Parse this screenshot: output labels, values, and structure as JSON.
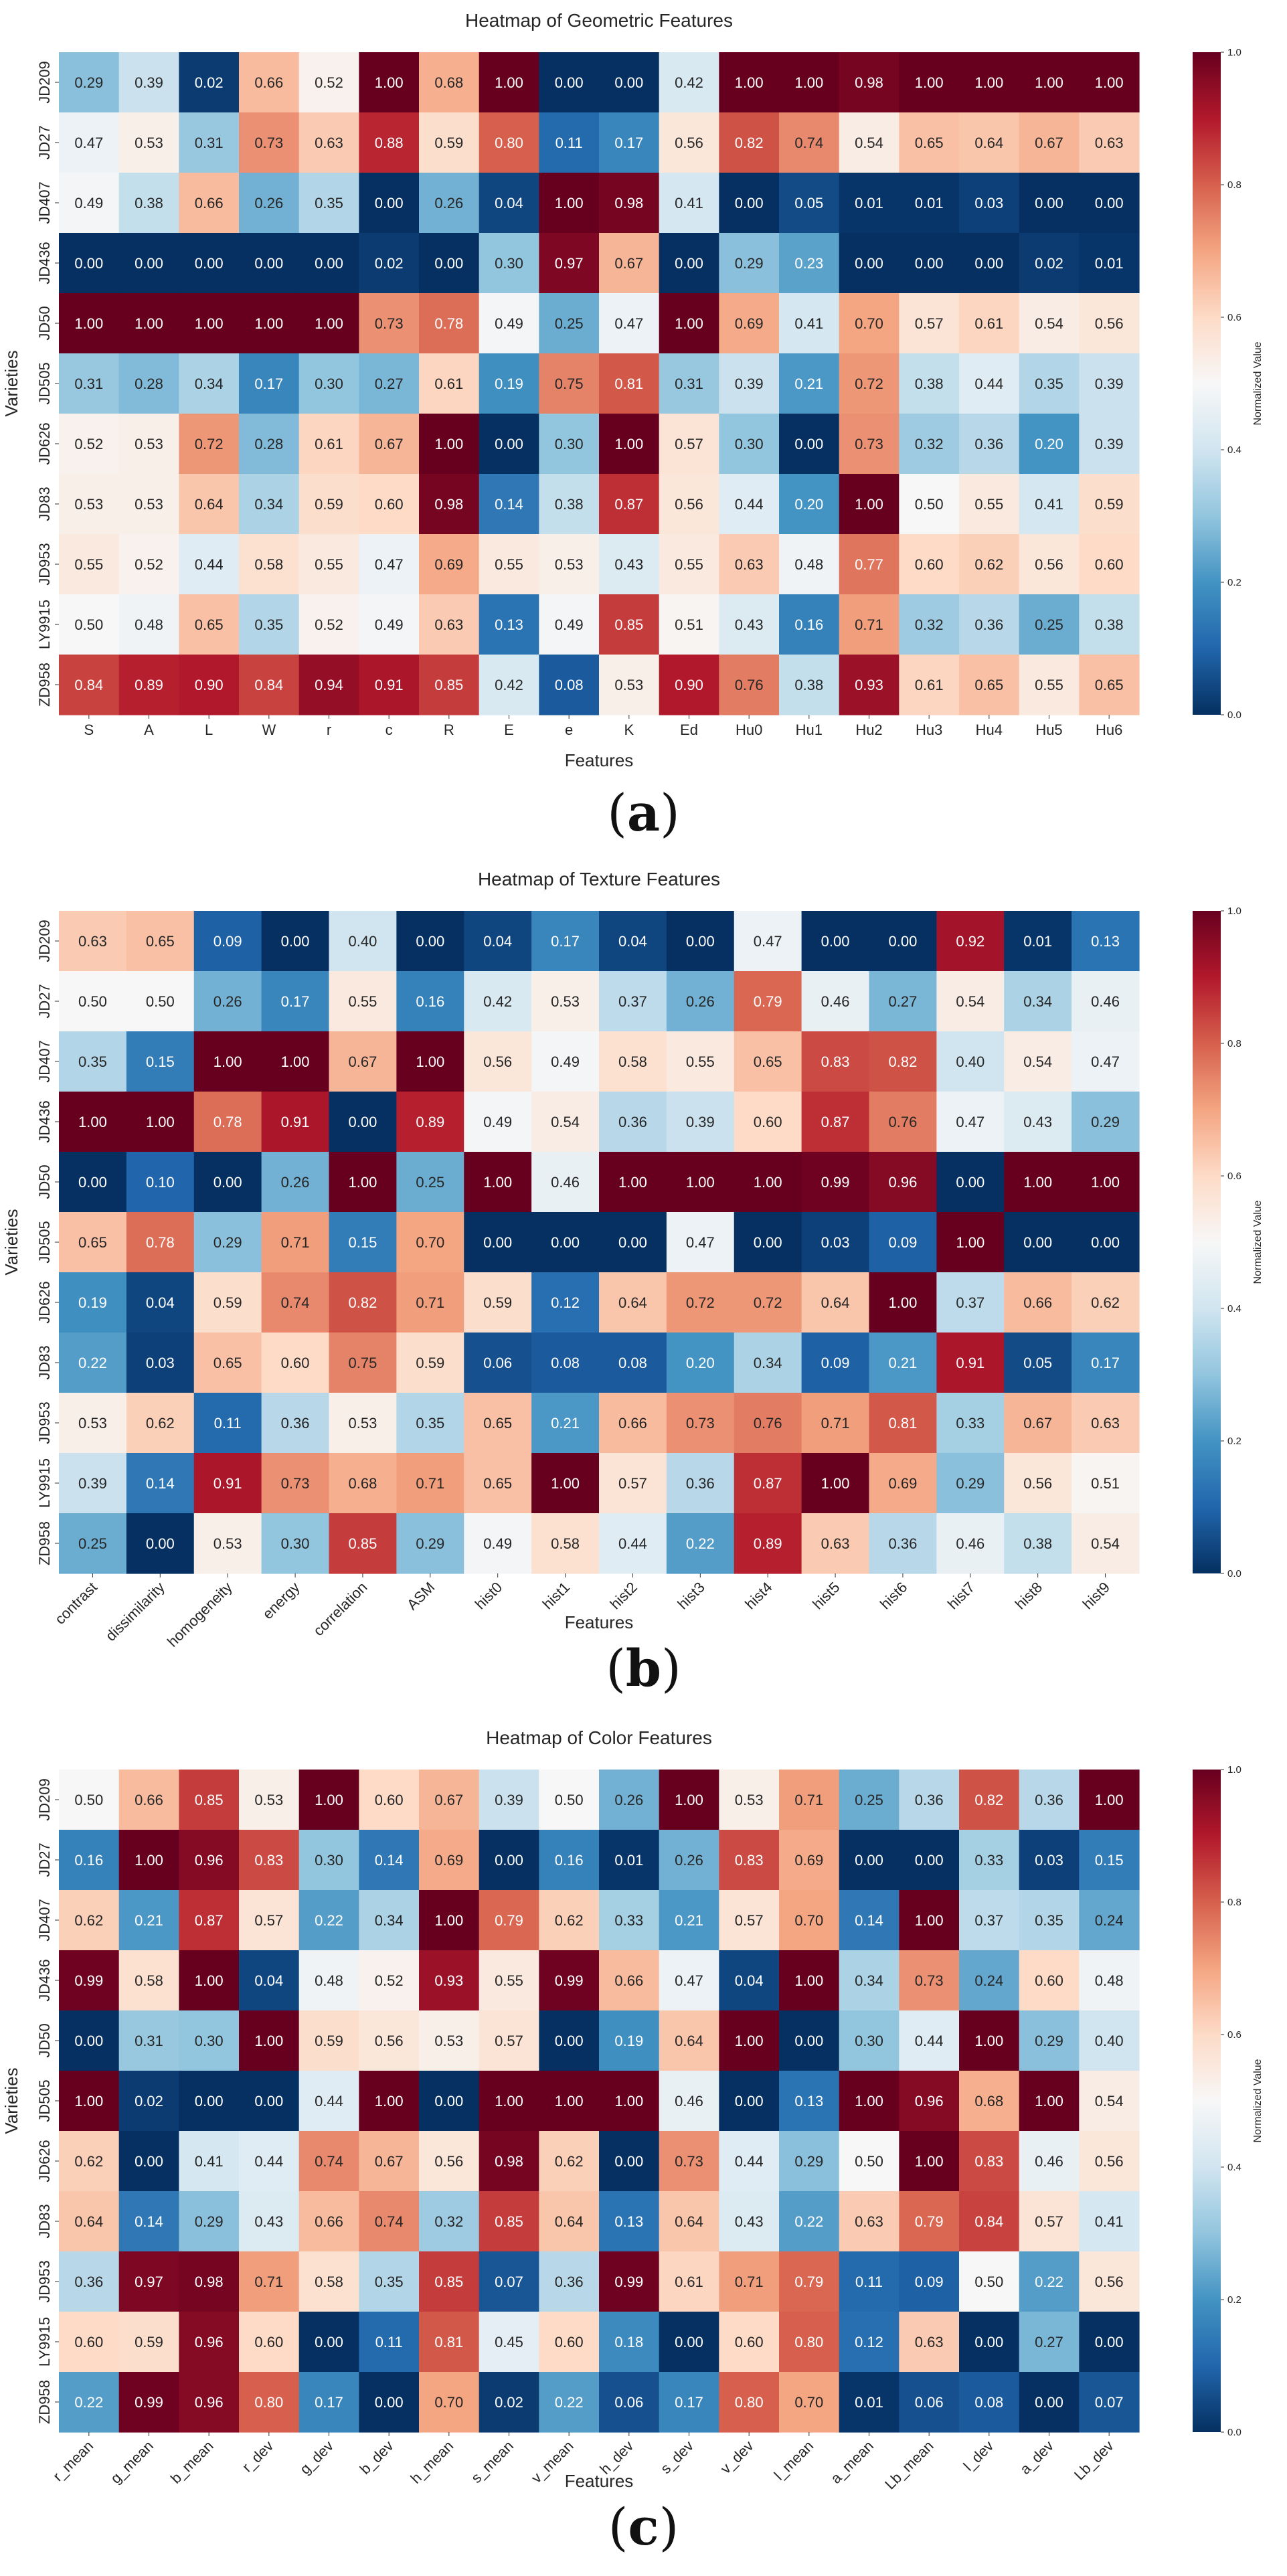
{
  "figure": {
    "panels": [
      {
        "letter_open": "(",
        "letter": "a",
        "letter_close": ")"
      },
      {
        "letter_open": "(",
        "letter": "b",
        "letter_close": ")"
      },
      {
        "letter_open": "(",
        "letter": "c",
        "letter_close": ")"
      }
    ]
  },
  "colors": {
    "cmap": [
      "#053061",
      "#2166ac",
      "#4393c3",
      "#92c5de",
      "#d1e5f0",
      "#f7f7f7",
      "#fddbc7",
      "#f4a582",
      "#d6604d",
      "#b2182b",
      "#67001f"
    ],
    "text_dark": "#262626",
    "text_light": "#ffffff"
  },
  "chart_data": [
    {
      "type": "heatmap",
      "title": "Heatmap of Geometric Features",
      "xlabel": "Features",
      "ylabel": "Varieties",
      "colorbar_label": "Normalized Value",
      "vmin": 0,
      "vmax": 1,
      "colorbar_ticks": [
        "0.0",
        "0.2",
        "0.4",
        "0.6",
        "0.8",
        "1.0"
      ],
      "rows": [
        "JD209",
        "JD27",
        "JD407",
        "JD436",
        "JD50",
        "JD505",
        "JD626",
        "JD83",
        "JD953",
        "LY9915",
        "ZD958"
      ],
      "columns": [
        "S",
        "A",
        "L",
        "W",
        "r",
        "c",
        "R",
        "E",
        "e",
        "K",
        "Ed",
        "Hu0",
        "Hu1",
        "Hu2",
        "Hu3",
        "Hu4",
        "Hu5",
        "Hu6"
      ],
      "values": [
        [
          0.29,
          0.39,
          0.02,
          0.66,
          0.52,
          1.0,
          0.68,
          1.0,
          0.0,
          0.0,
          0.42,
          1.0,
          1.0,
          0.98,
          1.0,
          1.0,
          1.0,
          1.0
        ],
        [
          0.47,
          0.53,
          0.31,
          0.73,
          0.63,
          0.88,
          0.59,
          0.8,
          0.11,
          0.17,
          0.56,
          0.82,
          0.74,
          0.54,
          0.65,
          0.64,
          0.67,
          0.63
        ],
        [
          0.49,
          0.38,
          0.66,
          0.26,
          0.35,
          0.0,
          0.26,
          0.04,
          1.0,
          0.98,
          0.41,
          0.0,
          0.05,
          0.01,
          0.01,
          0.03,
          0.0,
          0.0
        ],
        [
          0.0,
          0.0,
          0.0,
          0.0,
          0.0,
          0.02,
          0.0,
          0.3,
          0.97,
          0.67,
          0.0,
          0.29,
          0.23,
          0.0,
          0.0,
          0.0,
          0.02,
          0.01
        ],
        [
          1.0,
          1.0,
          1.0,
          1.0,
          1.0,
          0.73,
          0.78,
          0.49,
          0.25,
          0.47,
          1.0,
          0.69,
          0.41,
          0.7,
          0.57,
          0.61,
          0.54,
          0.56
        ],
        [
          0.31,
          0.28,
          0.34,
          0.17,
          0.3,
          0.27,
          0.61,
          0.19,
          0.75,
          0.81,
          0.31,
          0.39,
          0.21,
          0.72,
          0.38,
          0.44,
          0.35,
          0.39
        ],
        [
          0.52,
          0.53,
          0.72,
          0.28,
          0.61,
          0.67,
          1.0,
          0.0,
          0.3,
          1.0,
          0.57,
          0.3,
          0.0,
          0.73,
          0.32,
          0.36,
          0.2,
          0.39
        ],
        [
          0.53,
          0.53,
          0.64,
          0.34,
          0.59,
          0.6,
          0.98,
          0.14,
          0.38,
          0.87,
          0.56,
          0.44,
          0.2,
          1.0,
          0.5,
          0.55,
          0.41,
          0.59
        ],
        [
          0.55,
          0.52,
          0.44,
          0.58,
          0.55,
          0.47,
          0.69,
          0.55,
          0.53,
          0.43,
          0.55,
          0.63,
          0.48,
          0.77,
          0.6,
          0.62,
          0.56,
          0.6
        ],
        [
          0.5,
          0.48,
          0.65,
          0.35,
          0.52,
          0.49,
          0.63,
          0.13,
          0.49,
          0.85,
          0.51,
          0.43,
          0.16,
          0.71,
          0.32,
          0.36,
          0.25,
          0.38
        ],
        [
          0.84,
          0.89,
          0.9,
          0.84,
          0.94,
          0.91,
          0.85,
          0.42,
          0.08,
          0.53,
          0.9,
          0.76,
          0.38,
          0.93,
          0.61,
          0.65,
          0.55,
          0.65
        ]
      ],
      "xtick_rotation": 0
    },
    {
      "type": "heatmap",
      "title": "Heatmap of Texture Features",
      "xlabel": "Features",
      "ylabel": "Varieties",
      "colorbar_label": "Normalized Value",
      "vmin": 0,
      "vmax": 1,
      "colorbar_ticks": [
        "0.0",
        "0.2",
        "0.4",
        "0.6",
        "0.8",
        "1.0"
      ],
      "rows": [
        "JD209",
        "JD27",
        "JD407",
        "JD436",
        "JD50",
        "JD505",
        "JD626",
        "JD83",
        "JD953",
        "LY9915",
        "ZD958"
      ],
      "columns": [
        "contrast",
        "dissimilarity",
        "homogeneity",
        "energy",
        "correlation",
        "ASM",
        "hist0",
        "hist1",
        "hist2",
        "hist3",
        "hist4",
        "hist5",
        "hist6",
        "hist7",
        "hist8",
        "hist9"
      ],
      "values": [
        [
          0.63,
          0.65,
          0.09,
          0.0,
          0.4,
          0.0,
          0.04,
          0.17,
          0.04,
          0.0,
          0.47,
          0.0,
          0.0,
          0.92,
          0.01,
          0.13
        ],
        [
          0.5,
          0.5,
          0.26,
          0.17,
          0.55,
          0.16,
          0.42,
          0.53,
          0.37,
          0.26,
          0.79,
          0.46,
          0.27,
          0.54,
          0.34,
          0.46
        ],
        [
          0.35,
          0.15,
          1.0,
          1.0,
          0.67,
          1.0,
          0.56,
          0.49,
          0.58,
          0.55,
          0.65,
          0.83,
          0.82,
          0.4,
          0.54,
          0.47
        ],
        [
          1.0,
          1.0,
          0.78,
          0.91,
          0.0,
          0.89,
          0.49,
          0.54,
          0.36,
          0.39,
          0.6,
          0.87,
          0.76,
          0.47,
          0.43,
          0.29
        ],
        [
          0.0,
          0.1,
          0.0,
          0.26,
          1.0,
          0.25,
          1.0,
          0.46,
          1.0,
          1.0,
          1.0,
          0.99,
          0.96,
          0.0,
          1.0,
          1.0
        ],
        [
          0.65,
          0.78,
          0.29,
          0.71,
          0.15,
          0.7,
          0.0,
          0.0,
          0.0,
          0.47,
          0.0,
          0.03,
          0.09,
          1.0,
          0.0,
          0.0
        ],
        [
          0.19,
          0.04,
          0.59,
          0.74,
          0.82,
          0.71,
          0.59,
          0.12,
          0.64,
          0.72,
          0.72,
          0.64,
          1.0,
          0.37,
          0.66,
          0.62
        ],
        [
          0.22,
          0.03,
          0.65,
          0.6,
          0.75,
          0.59,
          0.06,
          0.08,
          0.08,
          0.2,
          0.34,
          0.09,
          0.21,
          0.91,
          0.05,
          0.17
        ],
        [
          0.53,
          0.62,
          0.11,
          0.36,
          0.53,
          0.35,
          0.65,
          0.21,
          0.66,
          0.73,
          0.76,
          0.71,
          0.81,
          0.33,
          0.67,
          0.63
        ],
        [
          0.39,
          0.14,
          0.91,
          0.73,
          0.68,
          0.71,
          0.65,
          1.0,
          0.57,
          0.36,
          0.87,
          1.0,
          0.69,
          0.29,
          0.56,
          0.51
        ],
        [
          0.25,
          0.0,
          0.53,
          0.3,
          0.85,
          0.29,
          0.49,
          0.58,
          0.44,
          0.22,
          0.89,
          0.63,
          0.36,
          0.46,
          0.38,
          0.54
        ]
      ],
      "xtick_rotation": 45
    },
    {
      "type": "heatmap",
      "title": "Heatmap of Color Features",
      "xlabel": "Features",
      "ylabel": "Varieties",
      "colorbar_label": "Normalized Value",
      "vmin": 0,
      "vmax": 1,
      "colorbar_ticks": [
        "0.0",
        "0.2",
        "0.4",
        "0.6",
        "0.8",
        "1.0"
      ],
      "rows": [
        "JD209",
        "JD27",
        "JD407",
        "JD436",
        "JD50",
        "JD505",
        "JD626",
        "JD83",
        "JD953",
        "LY9915",
        "ZD958"
      ],
      "columns": [
        "r_mean",
        "g_mean",
        "b_mean",
        "r_dev",
        "g_dev",
        "b_dev",
        "h_mean",
        "s_mean",
        "v_mean",
        "h_dev",
        "s_dev",
        "v_dev",
        "l_mean",
        "a_mean",
        "Lb_mean",
        "l_dev",
        "a_dev",
        "Lb_dev"
      ],
      "values": [
        [
          0.5,
          0.66,
          0.85,
          0.53,
          1.0,
          0.6,
          0.67,
          0.39,
          0.5,
          0.26,
          1.0,
          0.53,
          0.71,
          0.25,
          0.36,
          0.82,
          0.36,
          1.0
        ],
        [
          0.16,
          1.0,
          0.96,
          0.83,
          0.3,
          0.14,
          0.69,
          0.0,
          0.16,
          0.01,
          0.26,
          0.83,
          0.69,
          0.0,
          0.0,
          0.33,
          0.03,
          0.15
        ],
        [
          0.62,
          0.21,
          0.87,
          0.57,
          0.22,
          0.34,
          1.0,
          0.79,
          0.62,
          0.33,
          0.21,
          0.57,
          0.7,
          0.14,
          1.0,
          0.37,
          0.35,
          0.24
        ],
        [
          0.99,
          0.58,
          1.0,
          0.04,
          0.48,
          0.52,
          0.93,
          0.55,
          0.99,
          0.66,
          0.47,
          0.04,
          1.0,
          0.34,
          0.73,
          0.24,
          0.6,
          0.48
        ],
        [
          0.0,
          0.31,
          0.3,
          1.0,
          0.59,
          0.56,
          0.53,
          0.57,
          0.0,
          0.19,
          0.64,
          1.0,
          0.0,
          0.3,
          0.44,
          1.0,
          0.29,
          0.4
        ],
        [
          1.0,
          0.02,
          0.0,
          0.0,
          0.44,
          1.0,
          0.0,
          1.0,
          1.0,
          1.0,
          0.46,
          0.0,
          0.13,
          1.0,
          0.96,
          0.68,
          1.0,
          0.54
        ],
        [
          0.62,
          0.0,
          0.41,
          0.44,
          0.74,
          0.67,
          0.56,
          0.98,
          0.62,
          0.0,
          0.73,
          0.44,
          0.29,
          0.5,
          1.0,
          0.83,
          0.46,
          0.56
        ],
        [
          0.64,
          0.14,
          0.29,
          0.43,
          0.66,
          0.74,
          0.32,
          0.85,
          0.64,
          0.13,
          0.64,
          0.43,
          0.22,
          0.63,
          0.79,
          0.84,
          0.57,
          0.41
        ],
        [
          0.36,
          0.97,
          0.98,
          0.71,
          0.58,
          0.35,
          0.85,
          0.07,
          0.36,
          0.99,
          0.61,
          0.71,
          0.79,
          0.11,
          0.09,
          0.5,
          0.22,
          0.56
        ],
        [
          0.6,
          0.59,
          0.96,
          0.6,
          0.0,
          0.11,
          0.81,
          0.45,
          0.6,
          0.18,
          0.0,
          0.6,
          0.8,
          0.12,
          0.63,
          0.0,
          0.27,
          0.0
        ],
        [
          0.22,
          0.99,
          0.96,
          0.8,
          0.17,
          0.0,
          0.7,
          0.02,
          0.22,
          0.06,
          0.17,
          0.8,
          0.7,
          0.01,
          0.06,
          0.08,
          0.0,
          0.07
        ]
      ],
      "xtick_rotation": 45
    }
  ]
}
